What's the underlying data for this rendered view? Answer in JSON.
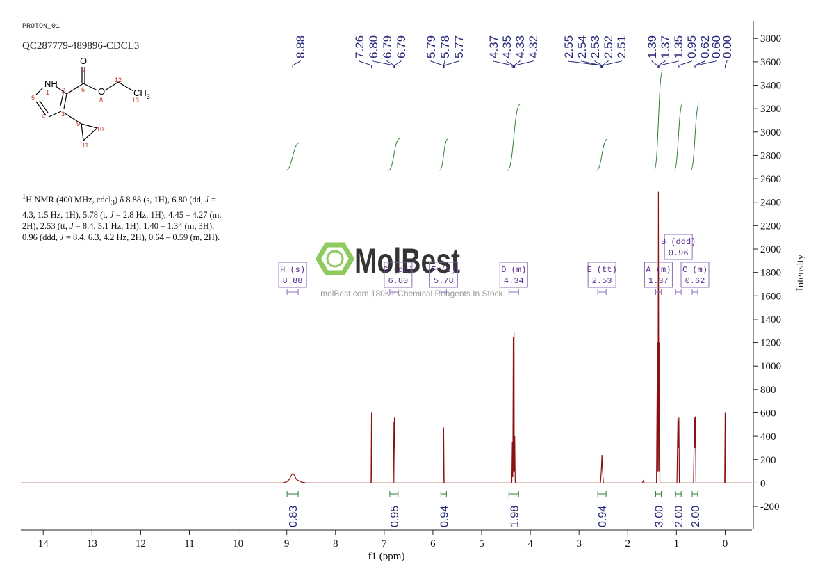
{
  "header": {
    "experiment": "PROTON_01",
    "sample": "QC287779-489896-CDCL3"
  },
  "structure": {
    "symbols": [
      "NH",
      "O",
      "O",
      "CH",
      "3"
    ],
    "numbers": [
      "1",
      "2",
      "3",
      "4",
      "5",
      "6",
      "7",
      "8",
      "9",
      "10",
      "11",
      "12",
      "13"
    ]
  },
  "description": [
    "1",
    "H NMR (400 MHz, cdcl",
    "3",
    ") δ 8.88 (s, 1H), 6.80 (dd, ",
    "J",
    " = 4.3, 1.5 Hz, 1H), 5.78 (t, ",
    "J",
    " = 2.8 Hz, 1H), 4.45 – 4.27 (m, 2H), 2.53 (tt, ",
    "J",
    " = 8.4, 5.1 Hz, 1H), 1.40 – 1.34 (m, 3H), 0.96 (ddd, ",
    "J",
    " = 8.4, 6.3, 4.2 Hz, 2H), 0.64 – 0.59 (m, 2H)."
  ],
  "watermark": {
    "brand": "MolBest",
    "slogan": "molBest.com,180K+ Chemical Reagents In Stock."
  },
  "chart_data": {
    "type": "line",
    "x_label": "f1 (ppm)",
    "y_label": "Intensity",
    "color": "#8b1010",
    "xlim": [
      14.46,
      -0.55
    ],
    "ylim": [
      -390,
      3950
    ],
    "xticks": [
      14,
      13,
      12,
      11,
      10,
      9,
      8,
      7,
      6,
      5,
      4,
      3,
      2,
      1,
      0
    ],
    "yticks": [
      -200,
      0,
      200,
      400,
      600,
      800,
      1000,
      1200,
      1400,
      1600,
      1800,
      2000,
      2200,
      2400,
      2600,
      2800,
      3000,
      3200,
      3400,
      3600,
      3800
    ],
    "x": [
      14.46,
      9.1,
      9.0,
      8.95,
      8.9,
      8.88,
      8.85,
      8.8,
      8.7,
      8.6,
      7.27,
      7.26,
      7.25,
      6.81,
      6.8,
      6.795,
      6.79,
      6.78,
      5.79,
      5.78,
      5.77,
      4.38,
      4.37,
      4.36,
      4.35,
      4.345,
      4.335,
      4.33,
      4.32,
      4.31,
      2.56,
      2.55,
      2.54,
      2.53,
      2.52,
      2.51,
      2.5,
      1.7,
      1.68,
      1.66,
      1.41,
      1.39,
      1.38,
      1.37,
      1.36,
      1.35,
      1.34,
      0.99,
      0.97,
      0.96,
      0.95,
      0.94,
      0.65,
      0.63,
      0.62,
      0.61,
      0.6,
      0.01,
      0.0,
      -0.01,
      -0.55
    ],
    "values": [
      0,
      0,
      10,
      30,
      70,
      80,
      70,
      30,
      8,
      0,
      0,
      600,
      0,
      0,
      520,
      300,
      560,
      0,
      0,
      475,
      0,
      0,
      350,
      50,
      1250,
      100,
      1290,
      100,
      400,
      0,
      0,
      60,
      130,
      240,
      130,
      60,
      0,
      0,
      20,
      0,
      0,
      1200,
      100,
      2490,
      100,
      1200,
      0,
      0,
      550,
      300,
      560,
      0,
      0,
      560,
      300,
      570,
      0,
      0,
      600,
      0,
      0
    ],
    "peak_labels": [
      "8.88",
      "7.26",
      "6.80",
      "6.79",
      "6.79",
      "5.79",
      "5.78",
      "5.77",
      "4.37",
      "4.35",
      "4.33",
      "4.32",
      "2.55",
      "2.54",
      "2.53",
      "2.52",
      "2.51",
      "1.39",
      "1.37",
      "1.35",
      "0.95",
      "0.62",
      "0.60",
      "0.00"
    ],
    "multiplets": [
      {
        "name": "H (s)",
        "shift": "8.88"
      },
      {
        "name": "G (dd)",
        "shift": "6.80"
      },
      {
        "name": "F (t)",
        "shift": "5.78"
      },
      {
        "name": "D (m)",
        "shift": "4.34"
      },
      {
        "name": "E (tt)",
        "shift": "2.53"
      },
      {
        "name": "A (m)",
        "shift": "1.37"
      },
      {
        "name": "B (ddd)",
        "shift": "0.96"
      },
      {
        "name": "C (m)",
        "shift": "0.62"
      }
    ],
    "integrals": [
      0.83,
      0.95,
      0.94,
      1.98,
      0.94,
      3,
      2,
      2
    ],
    "integral_labels": [
      "0.83",
      "0.95",
      "0.94",
      "1.98",
      "0.94",
      "3.00",
      "2.00",
      "2.00"
    ]
  }
}
